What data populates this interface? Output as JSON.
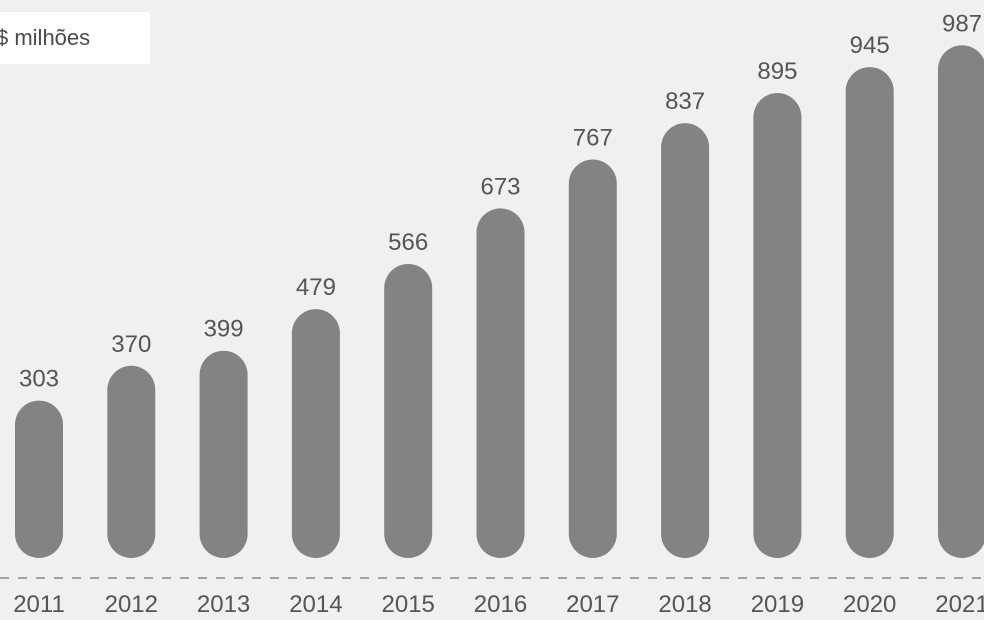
{
  "unit_label": "$ milhões",
  "chart_data": {
    "type": "bar",
    "title": "",
    "xlabel": "",
    "ylabel": "$ milhões",
    "ylim": [
      0,
      1000
    ],
    "grid": false,
    "categories": [
      "2011",
      "2012",
      "2013",
      "2014",
      "2015",
      "2016",
      "2017",
      "2018",
      "2019",
      "2020",
      "2021"
    ],
    "values": [
      303,
      370,
      399,
      479,
      566,
      673,
      767,
      837,
      895,
      945,
      987
    ],
    "colors": {
      "bar": "#838383",
      "background": "#f0f0f0"
    }
  }
}
